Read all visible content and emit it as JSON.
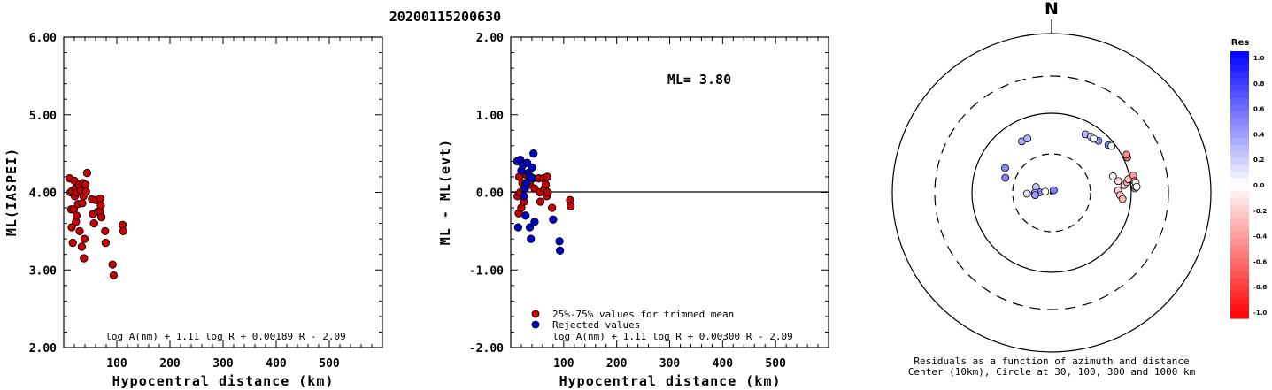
{
  "title": "20200115200630",
  "chart_data": [
    {
      "type": "scatter",
      "ylabel": "ML(IASPEI)",
      "xlabel": "Hypocentral distance (km)",
      "xlim": [
        0,
        600
      ],
      "ylim": [
        2,
        6
      ],
      "xticks": [
        "100",
        "200",
        "300",
        "400",
        "500"
      ],
      "yticks": [
        "2.00",
        "3.00",
        "4.00",
        "5.00",
        "6.00"
      ],
      "formula": "log A(nm) + 1.11 log R + 0.00189 R - 2.09",
      "points": [
        [
          11,
          4.18
        ],
        [
          13,
          4.0
        ],
        [
          14,
          3.78
        ],
        [
          15,
          3.55
        ],
        [
          16,
          4.02
        ],
        [
          17,
          3.35
        ],
        [
          19,
          3.78
        ],
        [
          20,
          4.15
        ],
        [
          21,
          3.95
        ],
        [
          22,
          4.05
        ],
        [
          23,
          3.62
        ],
        [
          24,
          3.7
        ],
        [
          25,
          4.0
        ],
        [
          27,
          3.85
        ],
        [
          29,
          4.1
        ],
        [
          30,
          3.5
        ],
        [
          32,
          4.02
        ],
        [
          34,
          3.3
        ],
        [
          35,
          3.86
        ],
        [
          36,
          4.12
        ],
        [
          37,
          3.95
        ],
        [
          38,
          3.15
        ],
        [
          39,
          3.4
        ],
        [
          41,
          4.1
        ],
        [
          42,
          4.01
        ],
        [
          44,
          4.25
        ],
        [
          53,
          3.91
        ],
        [
          55,
          3.72
        ],
        [
          57,
          3.6
        ],
        [
          61,
          3.9
        ],
        [
          64,
          3.75
        ],
        [
          68,
          3.75
        ],
        [
          69,
          3.92
        ],
        [
          70,
          3.83
        ],
        [
          71,
          3.68
        ],
        [
          78,
          3.5
        ],
        [
          79,
          3.35
        ],
        [
          92,
          3.07
        ],
        [
          94,
          2.93
        ],
        [
          111,
          3.58
        ],
        [
          112,
          3.5
        ]
      ]
    },
    {
      "type": "scatter",
      "ylabel": "ML - ML(evt)",
      "xlabel": "Hypocentral distance (km)",
      "xlim": [
        0,
        600
      ],
      "ylim": [
        -2,
        2
      ],
      "xticks": [
        "100",
        "200",
        "300",
        "400",
        "500"
      ],
      "yticks": [
        "-2.00",
        "-1.00",
        "0.00",
        "1.00",
        "2.00"
      ],
      "annotation": "ML= 3.80",
      "formula": "log A(nm) + 1.11 log R + 0.00300 R - 2.09",
      "legend": [
        "25%-75% values for trimmed mean",
        "Rejected values"
      ],
      "series": [
        {
          "name": "25%-75% values for trimmed mean",
          "color": "#cc0000",
          "points": [
            [
              13,
              -0.05
            ],
            [
              15,
              -0.27
            ],
            [
              16,
              0.2
            ],
            [
              18,
              0.0
            ],
            [
              20,
              -0.2
            ],
            [
              22,
              0.12
            ],
            [
              24,
              0.05
            ],
            [
              25,
              -0.12
            ],
            [
              28,
              0.1
            ],
            [
              30,
              0.22
            ],
            [
              36,
              0.1
            ],
            [
              42,
              0.18
            ],
            [
              45,
              0.05
            ],
            [
              53,
              0.18
            ],
            [
              55,
              0.0
            ],
            [
              56,
              -0.12
            ],
            [
              62,
              0.18
            ],
            [
              64,
              0.05
            ],
            [
              66,
              0.1
            ],
            [
              68,
              -0.05
            ],
            [
              69,
              0.2
            ],
            [
              70,
              0.0
            ],
            [
              78,
              -0.2
            ],
            [
              112,
              -0.1
            ],
            [
              113,
              -0.18
            ]
          ]
        },
        {
          "name": "Rejected values",
          "color": "#0000cc",
          "points": [
            [
              12,
              0.4
            ],
            [
              14,
              -0.45
            ],
            [
              18,
              0.42
            ],
            [
              20,
              0.28
            ],
            [
              23,
              0.35
            ],
            [
              25,
              -0.05
            ],
            [
              27,
              0.05
            ],
            [
              28,
              -0.3
            ],
            [
              30,
              0.12
            ],
            [
              31,
              0.38
            ],
            [
              33,
              0.25
            ],
            [
              35,
              0.22
            ],
            [
              36,
              -0.45
            ],
            [
              38,
              -0.6
            ],
            [
              40,
              0.18
            ],
            [
              40,
              0.32
            ],
            [
              43,
              0.5
            ],
            [
              45,
              -0.38
            ],
            [
              80,
              -0.35
            ],
            [
              92,
              -0.63
            ],
            [
              93,
              -0.75
            ]
          ]
        }
      ]
    },
    {
      "type": "polar-scatter",
      "north_label": "N",
      "caption": [
        "Residuals as a function of azimuth and distance",
        "Center (10km), Circle at 30, 100, 300 and 1000 km"
      ],
      "colorbar": {
        "title": "Res",
        "labels": [
          "1.0",
          "0.8",
          "0.6",
          "0.4",
          "0.2",
          "0.0",
          "-0.2",
          "-0.4",
          "-0.6",
          "-0.8",
          "-1.0"
        ]
      },
      "rings_km": [
        30,
        100,
        300,
        1000
      ],
      "points": [
        {
          "distance_km": 55,
          "azimuth_deg": 330,
          "residual": 0.35
        },
        {
          "distance_km": 55,
          "azimuth_deg": 336,
          "residual": 0.3
        },
        {
          "distance_km": 45,
          "azimuth_deg": 298,
          "residual": 0.45
        },
        {
          "distance_km": 40,
          "azimuth_deg": 288,
          "residual": 0.5
        },
        {
          "distance_km": 16,
          "azimuth_deg": 290,
          "residual": 0.2
        },
        {
          "distance_km": 14,
          "azimuth_deg": 272,
          "residual": 0.45
        },
        {
          "distance_km": 16,
          "azimuth_deg": 270,
          "residual": 0.35
        },
        {
          "distance_km": 20,
          "azimuth_deg": 268,
          "residual": 0.1
        },
        {
          "distance_km": 16,
          "azimuth_deg": 262,
          "residual": 0.4
        },
        {
          "distance_km": 12,
          "azimuth_deg": 280,
          "residual": 0.0
        },
        {
          "distance_km": 11,
          "azimuth_deg": 40,
          "residual": 0.5
        },
        {
          "distance_km": 70,
          "azimuth_deg": 30,
          "residual": 0.3
        },
        {
          "distance_km": 72,
          "azimuth_deg": 35,
          "residual": 0.25
        },
        {
          "distance_km": 75,
          "azimuth_deg": 42,
          "residual": 0.4
        },
        {
          "distance_km": 72,
          "azimuth_deg": 38,
          "residual": 0.0
        },
        {
          "distance_km": 85,
          "azimuth_deg": 50,
          "residual": 0.5
        },
        {
          "distance_km": 90,
          "azimuth_deg": 52,
          "residual": 0.0
        },
        {
          "distance_km": 62,
          "azimuth_deg": 75,
          "residual": 0.05
        },
        {
          "distance_km": 70,
          "azimuth_deg": 80,
          "residual": -0.1
        },
        {
          "distance_km": 68,
          "azimuth_deg": 88,
          "residual": -0.2
        },
        {
          "distance_km": 72,
          "azimuth_deg": 92,
          "residual": -0.25
        },
        {
          "distance_km": 78,
          "azimuth_deg": 95,
          "residual": -0.3
        },
        {
          "distance_km": 82,
          "azimuth_deg": 84,
          "residual": -0.15
        },
        {
          "distance_km": 90,
          "azimuth_deg": 82,
          "residual": -0.35
        },
        {
          "distance_km": 95,
          "azimuth_deg": 80,
          "residual": -0.25
        },
        {
          "distance_km": 112,
          "azimuth_deg": 65,
          "residual": -0.55
        },
        {
          "distance_km": 114,
          "azimuth_deg": 63,
          "residual": -0.45
        },
        {
          "distance_km": 112,
          "azimuth_deg": 78,
          "residual": -0.4
        },
        {
          "distance_km": 113,
          "azimuth_deg": 82,
          "residual": -0.35
        },
        {
          "distance_km": 112,
          "azimuth_deg": 87,
          "residual": -0.15
        },
        {
          "distance_km": 114,
          "azimuth_deg": 86,
          "residual": -0.1
        },
        {
          "distance_km": 116,
          "azimuth_deg": 83,
          "residual": -0.05
        },
        {
          "distance_km": 118,
          "azimuth_deg": 86,
          "residual": 0.0
        }
      ]
    }
  ]
}
